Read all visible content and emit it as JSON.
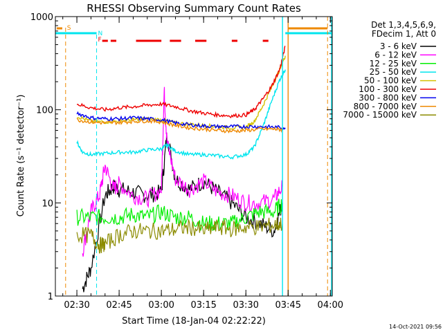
{
  "chart_data": {
    "type": "line",
    "title": "RHESSI Observing Summary Count Rates",
    "xlabel": "Start Time (18-Jan-04 02:22:22)",
    "ylabel": "Count Rate (s⁻¹ detector⁻¹)",
    "y_scale": "log",
    "ylim": [
      1,
      1000
    ],
    "y_ticks": [
      {
        "value": 1,
        "label": "1"
      },
      {
        "value": 10,
        "label": "10"
      },
      {
        "value": 100,
        "label": "100"
      },
      {
        "value": 1000,
        "label": "1000"
      }
    ],
    "x_range": [
      "02:22:22",
      "04:00:40"
    ],
    "x_ticks": [
      "02:30",
      "02:45",
      "03:00",
      "03:15",
      "03:30",
      "03:45",
      "04:00"
    ],
    "legend": {
      "position": "right",
      "header": [
        "Det 1,3,4,5,6,9,",
        "FDecim 1, Att 0"
      ]
    },
    "series": [
      {
        "name": "3 - 6 keV",
        "color": "#000000",
        "x": [
          "02:32",
          "02:35",
          "02:40",
          "02:43",
          "02:45",
          "02:50",
          "02:55",
          "03:00",
          "03:02",
          "03:05",
          "03:10",
          "03:15",
          "03:20",
          "03:25",
          "03:30",
          "03:35",
          "03:40",
          "03:43"
        ],
        "values": [
          1.2,
          2,
          12,
          15,
          14,
          13,
          12,
          13,
          55,
          18,
          14,
          17,
          13,
          10,
          7,
          6,
          5,
          10
        ]
      },
      {
        "name": "6 - 12 keV",
        "color": "#ff00ff",
        "x": [
          "02:32",
          "02:35",
          "02:38",
          "02:40",
          "02:43",
          "02:45",
          "02:50",
          "02:55",
          "03:00",
          "03:01",
          "03:02",
          "03:05",
          "03:10",
          "03:15",
          "03:20",
          "03:25",
          "03:30",
          "03:35",
          "03:40",
          "03:43"
        ],
        "values": [
          3,
          8,
          12,
          25,
          14,
          16,
          12,
          11,
          14,
          160,
          45,
          18,
          14,
          17,
          13,
          12,
          10,
          10,
          11,
          15
        ]
      },
      {
        "name": "12 - 25 keV",
        "color": "#00ee00",
        "x": [
          "02:30",
          "02:35",
          "02:40",
          "02:45",
          "02:50",
          "02:55",
          "03:00",
          "03:05",
          "03:10",
          "03:15",
          "03:20",
          "03:25",
          "03:30",
          "03:35",
          "03:40",
          "03:43"
        ],
        "values": [
          7,
          7,
          7,
          7,
          7.5,
          7,
          8,
          7,
          7,
          6,
          6,
          6,
          7,
          8,
          8,
          10
        ]
      },
      {
        "name": "25 - 50 keV",
        "color": "#00e5ee",
        "x": [
          "02:30",
          "02:32",
          "02:35",
          "02:40",
          "02:45",
          "02:50",
          "02:55",
          "03:00",
          "03:02",
          "03:05",
          "03:10",
          "03:15",
          "03:20",
          "03:25",
          "03:30",
          "03:33",
          "03:36",
          "03:39",
          "03:42",
          "03:44"
        ],
        "values": [
          45,
          35,
          33,
          34,
          35,
          35,
          37,
          38,
          42,
          36,
          33,
          33,
          32,
          31,
          33,
          40,
          65,
          120,
          210,
          270
        ]
      },
      {
        "name": "50 - 100 keV",
        "color": "#d4c000",
        "x": [
          "02:30",
          "02:35",
          "02:40",
          "02:45",
          "02:50",
          "02:55",
          "03:00",
          "03:05",
          "03:10",
          "03:15",
          "03:20",
          "03:25",
          "03:30",
          "03:33",
          "03:36",
          "03:39",
          "03:42",
          "03:44"
        ],
        "values": [
          85,
          75,
          74,
          76,
          78,
          80,
          78,
          72,
          70,
          68,
          66,
          64,
          65,
          75,
          110,
          170,
          270,
          380
        ]
      },
      {
        "name": "100 - 300 keV",
        "color": "#ee0000",
        "x": [
          "02:30",
          "02:35",
          "02:40",
          "02:45",
          "02:50",
          "02:55",
          "03:00",
          "03:05",
          "03:10",
          "03:15",
          "03:20",
          "03:25",
          "03:30",
          "03:33",
          "03:36",
          "03:39",
          "03:42",
          "03:44"
        ],
        "values": [
          115,
          105,
          100,
          105,
          108,
          112,
          115,
          108,
          98,
          92,
          88,
          86,
          88,
          100,
          130,
          175,
          270,
          480
        ]
      },
      {
        "name": "300 - 800 keV",
        "color": "#0000ee",
        "x": [
          "02:30",
          "02:35",
          "02:40",
          "02:45",
          "02:50",
          "02:55",
          "03:00",
          "03:05",
          "03:10",
          "03:15",
          "03:20",
          "03:25",
          "03:30",
          "03:35",
          "03:40",
          "03:44"
        ],
        "values": [
          92,
          82,
          80,
          80,
          82,
          80,
          78,
          72,
          69,
          67,
          66,
          66,
          66,
          66,
          65,
          64
        ]
      },
      {
        "name": "800 - 7000 keV",
        "color": "#ee8800",
        "x": [
          "02:30",
          "02:35",
          "02:40",
          "02:45",
          "02:50",
          "02:55",
          "03:00",
          "03:05",
          "03:10",
          "03:15",
          "03:20",
          "03:25",
          "03:30",
          "03:35",
          "03:40",
          "03:43"
        ],
        "values": [
          78,
          74,
          72,
          73,
          75,
          76,
          74,
          68,
          64,
          62,
          60,
          59,
          60,
          62,
          62,
          61
        ]
      },
      {
        "name": "7000 - 15000 keV",
        "color": "#8b8b00",
        "x": [
          "02:30",
          "02:35",
          "02:38",
          "02:40",
          "02:45",
          "02:50",
          "02:55",
          "03:00",
          "03:05",
          "03:10",
          "03:15",
          "03:20",
          "03:25",
          "03:30",
          "03:35",
          "03:40",
          "03:43"
        ],
        "values": [
          4.5,
          4.5,
          3.5,
          3.6,
          4.5,
          5,
          5,
          5,
          5.2,
          5.5,
          5,
          5.5,
          5.2,
          5.5,
          5.5,
          5.8,
          6
        ]
      }
    ],
    "annotations": [
      {
        "text": "S",
        "color": "#ee8800",
        "x": "02:26"
      },
      {
        "text": "N",
        "color": "#00e5ee",
        "x": "02:37"
      },
      {
        "text": "F",
        "color": "#ee0000",
        "x": "02:37"
      }
    ],
    "footer_timestamp": "14-Oct-2021 09:56"
  }
}
